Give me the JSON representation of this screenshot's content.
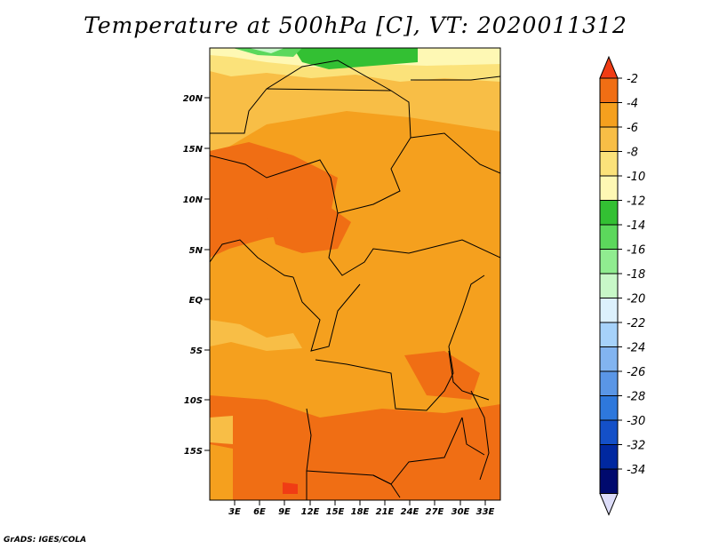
{
  "title": "Temperature at 500hPa [C], VT: 2020011312",
  "credit": "GrADS: IGES/COLA",
  "map": {
    "lat_ticks": [
      "20N",
      "15N",
      "10N",
      "5N",
      "EQ",
      "5S",
      "10S",
      "15S"
    ],
    "lon_ticks": [
      "3E",
      "6E",
      "9E",
      "12E",
      "15E",
      "18E",
      "21E",
      "24E",
      "27E",
      "30E",
      "33E"
    ]
  },
  "colorbar": {
    "labels": [
      "-2",
      "-4",
      "-6",
      "-8",
      "-10",
      "-12",
      "-14",
      "-16",
      "-18",
      "-20",
      "-22",
      "-24",
      "-26",
      "-28",
      "-30",
      "-32",
      "-34"
    ],
    "colors": [
      "#f03c14",
      "#f06e14",
      "#f5a01e",
      "#f8be46",
      "#fbe27a",
      "#fef8b4",
      "#33c033",
      "#5cd85c",
      "#90ec90",
      "#c8f8c8",
      "#dcf0fc",
      "#a6d2fa",
      "#82b4f0",
      "#5a96e6",
      "#2e78dc",
      "#1450c8",
      "#0028a0",
      "#000a6e",
      "#dcdcf8"
    ]
  }
}
